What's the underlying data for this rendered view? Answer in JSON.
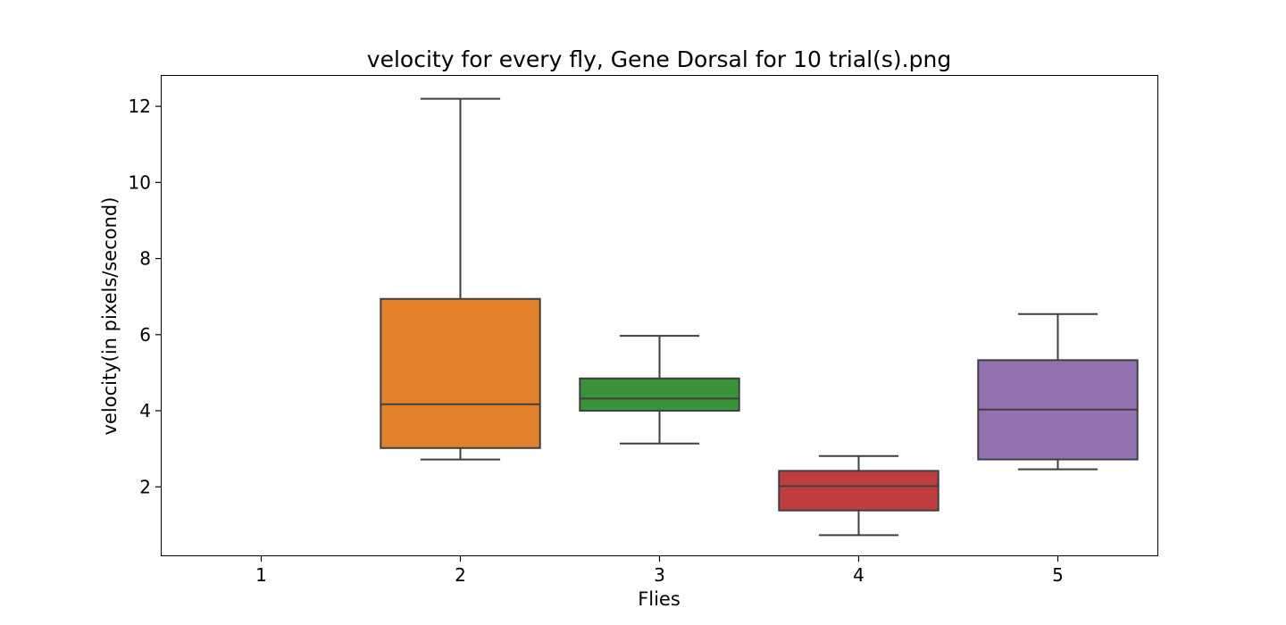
{
  "chart_data": {
    "type": "box",
    "title": "velocity for every fly, Gene Dorsal for 10 trial(s).png",
    "xlabel": "Flies",
    "ylabel": "velocity(in pixels/second)",
    "categories": [
      "1",
      "2",
      "3",
      "4",
      "5"
    ],
    "ylim": [
      0.2,
      12.8
    ],
    "yticks": [
      2,
      4,
      6,
      8,
      10,
      12
    ],
    "ytick_labels": [
      "2",
      "4",
      "6",
      "8",
      "10",
      "12"
    ],
    "grid": false,
    "boxes": [
      {
        "category": "1",
        "empty": true
      },
      {
        "category": "2",
        "whisker_low": 2.72,
        "q1": 3.02,
        "median": 4.17,
        "q3": 6.94,
        "whisker_high": 12.2,
        "color": "#e1812c"
      },
      {
        "category": "3",
        "whisker_low": 3.14,
        "q1": 4.0,
        "median": 4.32,
        "q3": 4.85,
        "whisker_high": 5.97,
        "color": "#3a923a"
      },
      {
        "category": "4",
        "whisker_low": 0.73,
        "q1": 1.38,
        "median": 2.02,
        "q3": 2.42,
        "whisker_high": 2.81,
        "color": "#c03d3e"
      },
      {
        "category": "5",
        "whisker_low": 2.46,
        "q1": 2.72,
        "median": 4.03,
        "q3": 5.33,
        "whisker_high": 6.54,
        "color": "#9372b2"
      }
    ]
  }
}
